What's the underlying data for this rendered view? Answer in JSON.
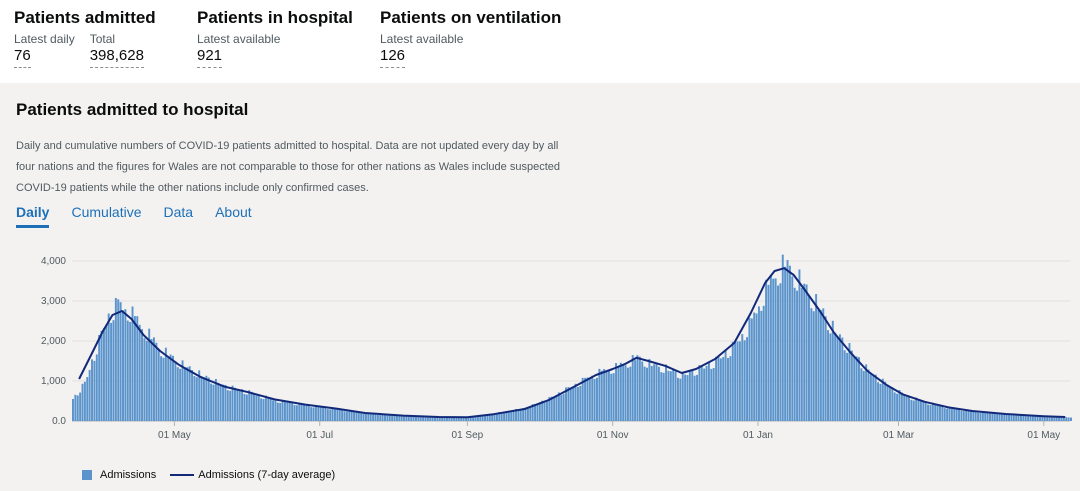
{
  "headline": [
    {
      "title": "Patients admitted",
      "items": [
        {
          "label": "Latest daily",
          "value": "76"
        },
        {
          "label": "Total",
          "value": "398,628"
        }
      ]
    },
    {
      "title": "Patients in hospital",
      "items": [
        {
          "label": "Latest available",
          "value": "921"
        }
      ]
    },
    {
      "title": "Patients on ventilation",
      "items": [
        {
          "label": "Latest available",
          "value": "126"
        }
      ]
    }
  ],
  "card": {
    "title": "Patients admitted to hospital",
    "description": "Daily and cumulative numbers of COVID-19 patients admitted to hospital. Data are not updated every day by all four nations and the figures for Wales are not comparable to those for other nations as Wales include suspected COVID-19 patients while the other nations include only confirmed cases.",
    "tabs": [
      {
        "label": "Daily",
        "active": true
      },
      {
        "label": "Cumulative",
        "active": false
      },
      {
        "label": "Data",
        "active": false
      },
      {
        "label": "About",
        "active": false
      }
    ]
  },
  "colors": {
    "bars": "#5b94cc",
    "line": "#12297a",
    "tab": "#1d70b8"
  },
  "chart_data": {
    "type": "bar",
    "x_type": "date",
    "x_range": [
      "2020-03-19",
      "2021-05-12"
    ],
    "ylim": [
      0,
      4000
    ],
    "y_ticks": [
      0,
      1000,
      2000,
      3000,
      4000
    ],
    "y_tick_labels": [
      "0.0",
      "1,000",
      "2,000",
      "3,000",
      "4,000"
    ],
    "x_ticks": [
      {
        "date": "2020-05-01",
        "label": "01 May"
      },
      {
        "date": "2020-07-01",
        "label": "01 Jul"
      },
      {
        "date": "2020-09-01",
        "label": "01 Sep"
      },
      {
        "date": "2020-11-01",
        "label": "01 Nov"
      },
      {
        "date": "2021-01-01",
        "label": "01 Jan"
      },
      {
        "date": "2021-03-01",
        "label": "01 Mar"
      },
      {
        "date": "2021-05-01",
        "label": "01 May"
      }
    ],
    "legend_position": "bottom-left",
    "series": [
      {
        "name": "Admissions",
        "type": "bar",
        "color": "#5b94cc",
        "note": "daily values interpolated from these approximate anchor points",
        "anchors": [
          [
            "2020-03-19",
            550
          ],
          [
            "2020-03-24",
            950
          ],
          [
            "2020-03-29",
            1850
          ],
          [
            "2020-04-03",
            2650
          ],
          [
            "2020-04-07",
            2950
          ],
          [
            "2020-04-12",
            2750
          ],
          [
            "2020-04-18",
            2300
          ],
          [
            "2020-04-25",
            1800
          ],
          [
            "2020-05-03",
            1450
          ],
          [
            "2020-05-12",
            1150
          ],
          [
            "2020-05-22",
            870
          ],
          [
            "2020-06-01",
            720
          ],
          [
            "2020-06-12",
            520
          ],
          [
            "2020-06-25",
            400
          ],
          [
            "2020-07-08",
            300
          ],
          [
            "2020-07-20",
            190
          ],
          [
            "2020-08-05",
            130
          ],
          [
            "2020-08-20",
            100
          ],
          [
            "2020-09-01",
            100
          ],
          [
            "2020-09-12",
            190
          ],
          [
            "2020-09-25",
            320
          ],
          [
            "2020-10-05",
            560
          ],
          [
            "2020-10-15",
            880
          ],
          [
            "2020-10-25",
            1200
          ],
          [
            "2020-11-01",
            1330
          ],
          [
            "2020-11-06",
            1450
          ],
          [
            "2020-11-11",
            1600
          ],
          [
            "2020-11-16",
            1450
          ],
          [
            "2020-11-23",
            1320
          ],
          [
            "2020-11-30",
            1150
          ],
          [
            "2020-12-06",
            1280
          ],
          [
            "2020-12-14",
            1500
          ],
          [
            "2020-12-22",
            1900
          ],
          [
            "2020-12-29",
            2500
          ],
          [
            "2021-01-03",
            3200
          ],
          [
            "2021-01-08",
            3700
          ],
          [
            "2021-01-12",
            3950
          ],
          [
            "2021-01-16",
            3700
          ],
          [
            "2021-01-21",
            3300
          ],
          [
            "2021-01-27",
            2800
          ],
          [
            "2021-02-02",
            2250
          ],
          [
            "2021-02-09",
            1750
          ],
          [
            "2021-02-16",
            1250
          ],
          [
            "2021-02-24",
            900
          ],
          [
            "2021-03-03",
            650
          ],
          [
            "2021-03-12",
            470
          ],
          [
            "2021-03-22",
            330
          ],
          [
            "2021-04-01",
            240
          ],
          [
            "2021-04-15",
            170
          ],
          [
            "2021-05-01",
            110
          ],
          [
            "2021-05-12",
            85
          ]
        ]
      },
      {
        "name": "Admissions (7-day average)",
        "type": "line",
        "color": "#12297a",
        "points": [
          [
            "2020-03-22",
            1050
          ],
          [
            "2020-03-27",
            1650
          ],
          [
            "2020-04-01",
            2250
          ],
          [
            "2020-04-05",
            2650
          ],
          [
            "2020-04-09",
            2750
          ],
          [
            "2020-04-13",
            2550
          ],
          [
            "2020-04-18",
            2150
          ],
          [
            "2020-04-25",
            1750
          ],
          [
            "2020-05-03",
            1400
          ],
          [
            "2020-05-12",
            1100
          ],
          [
            "2020-05-22",
            860
          ],
          [
            "2020-06-01",
            720
          ],
          [
            "2020-06-12",
            540
          ],
          [
            "2020-06-25",
            410
          ],
          [
            "2020-07-08",
            310
          ],
          [
            "2020-07-20",
            200
          ],
          [
            "2020-08-05",
            135
          ],
          [
            "2020-08-20",
            100
          ],
          [
            "2020-09-01",
            95
          ],
          [
            "2020-09-12",
            170
          ],
          [
            "2020-09-25",
            300
          ],
          [
            "2020-10-05",
            520
          ],
          [
            "2020-10-15",
            830
          ],
          [
            "2020-10-25",
            1150
          ],
          [
            "2020-11-01",
            1300
          ],
          [
            "2020-11-06",
            1420
          ],
          [
            "2020-11-11",
            1580
          ],
          [
            "2020-11-16",
            1500
          ],
          [
            "2020-11-23",
            1380
          ],
          [
            "2020-11-30",
            1200
          ],
          [
            "2020-12-06",
            1300
          ],
          [
            "2020-12-14",
            1550
          ],
          [
            "2020-12-22",
            1950
          ],
          [
            "2020-12-29",
            2700
          ],
          [
            "2021-01-04",
            3450
          ],
          [
            "2021-01-08",
            3750
          ],
          [
            "2021-01-12",
            3820
          ],
          [
            "2021-01-16",
            3650
          ],
          [
            "2021-01-21",
            3250
          ],
          [
            "2021-01-27",
            2750
          ],
          [
            "2021-02-02",
            2200
          ],
          [
            "2021-02-09",
            1700
          ],
          [
            "2021-02-16",
            1250
          ],
          [
            "2021-02-24",
            900
          ],
          [
            "2021-03-03",
            660
          ],
          [
            "2021-03-12",
            480
          ],
          [
            "2021-03-22",
            340
          ],
          [
            "2021-04-01",
            250
          ],
          [
            "2021-04-15",
            175
          ],
          [
            "2021-05-01",
            120
          ],
          [
            "2021-05-10",
            100
          ]
        ]
      }
    ]
  }
}
